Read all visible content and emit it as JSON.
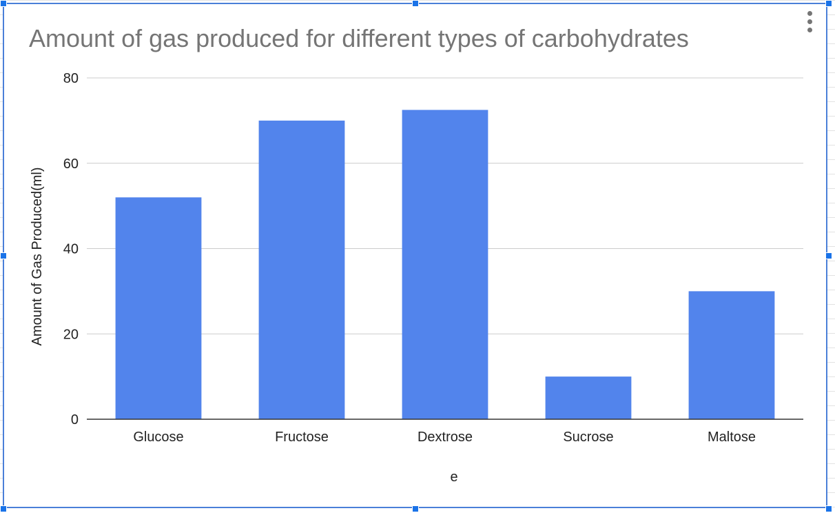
{
  "chart_data": {
    "type": "bar",
    "title": "Amount of gas produced for different types of carbohydrates",
    "xlabel": "e",
    "ylabel": "Amount of Gas Produced(ml)",
    "categories": [
      "Glucose",
      "Fructose",
      "Dextrose",
      "Sucrose",
      "Maltose"
    ],
    "series": [
      {
        "values": [
          52,
          70,
          72.5,
          10,
          30
        ]
      }
    ],
    "ylim": [
      0,
      80
    ],
    "yticks": [
      0,
      20,
      40,
      60,
      80
    ],
    "grid": true,
    "legend": "none",
    "colors": {
      "bar": "#5284ec",
      "grid": "#cccccc",
      "axis": "#333333",
      "title": "#757575",
      "frame": "#4a7fd8"
    }
  },
  "icons": {
    "menu": "more-vert-icon"
  }
}
